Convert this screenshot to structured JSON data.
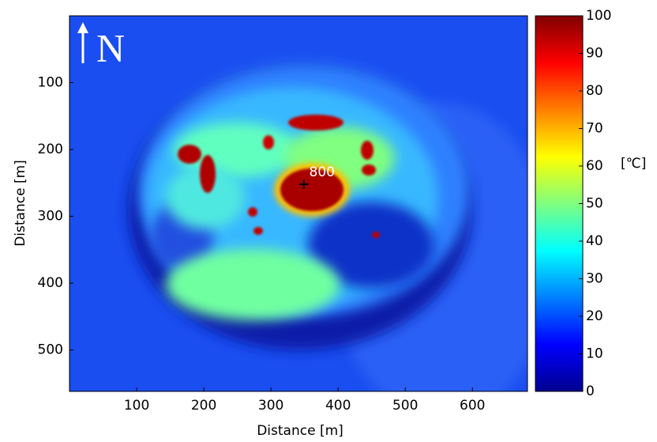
{
  "chart_data": {
    "type": "heatmap",
    "xlabel": "Distance [m]",
    "ylabel": "Distance [m]",
    "xlim": [
      0,
      682
    ],
    "xticks": [
      100,
      200,
      300,
      400,
      500,
      600
    ],
    "ylim": [
      562,
      0
    ],
    "yticks": [
      100,
      200,
      300,
      400,
      500
    ],
    "colorbar": {
      "label": "[℃]",
      "lim": [
        0,
        100
      ],
      "ticks": [
        0,
        10,
        20,
        30,
        40,
        50,
        60,
        70,
        80,
        90,
        100
      ],
      "colormap": "jet"
    },
    "annotations": [
      {
        "text": "800",
        "x": 376,
        "y": 234
      }
    ],
    "marker": {
      "x": 349,
      "y": 252
    },
    "north_label": "N"
  }
}
